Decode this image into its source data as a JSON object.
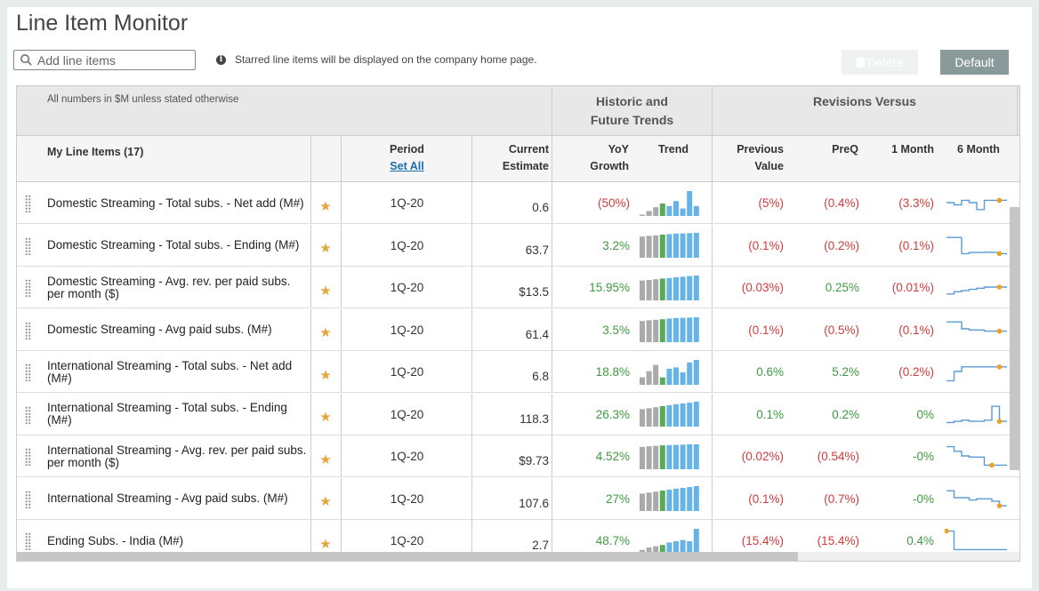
{
  "title": "Line Item Monitor",
  "search": {
    "placeholder": "Add line items"
  },
  "info_text": "Starred line items will be displayed on the company home page.",
  "buttons": {
    "delete": "Delete",
    "default": "Default"
  },
  "header": {
    "note": "All numbers in $M unless stated otherwise",
    "group_trends_line1": "Historic and",
    "group_trends_line2": "Future Trends",
    "group_revisions": "Revisions Versus",
    "my_line_items": "My Line Items (17)",
    "period": "Period",
    "set_all": "Set All",
    "current_line1": "Current",
    "current_line2": "Estimate",
    "yoy_line1": "YoY",
    "yoy_line2": "Growth",
    "trend": "Trend",
    "prev_line1": "Previous",
    "prev_line2": "Value",
    "preq": "PreQ",
    "one_month": "1 Month",
    "six_month": "6 Month"
  },
  "colors": {
    "negative": "#d23b3b",
    "positive": "#3f9a3f",
    "bar_hist": "#aaaaaa",
    "bar_current": "#5aaa5a",
    "bar_future": "#66b3e8",
    "spark": "#5b9bd5",
    "spark_dot": "#f0a020"
  },
  "rows": [
    {
      "name": "Domestic Streaming - Total subs. - Net add (M#)",
      "period": "1Q-20",
      "current": "0.6",
      "yoy": "(50%)",
      "yoy_sign": "neg",
      "prev": "(5%)",
      "prev_sign": "neg",
      "preq": "(0.4%)",
      "preq_sign": "neg",
      "m1": "(3.3%)",
      "m1_sign": "neg",
      "bars": [
        0.05,
        0.2,
        0.35,
        0.5,
        0.4,
        0.6,
        0.3,
        1.0,
        0.4
      ],
      "spark": [
        0.5,
        0.6,
        0.4,
        0.5,
        0.8,
        0.4,
        0.4,
        0.4,
        0.35
      ],
      "dot": 7
    },
    {
      "name": "Domestic Streaming - Total subs. - Ending (M#)",
      "period": "1Q-20",
      "current": "63.7",
      "yoy": "3.2%",
      "yoy_sign": "pos",
      "prev": "(0.1%)",
      "prev_sign": "neg",
      "preq": "(0.2%)",
      "preq_sign": "neg",
      "m1": "(0.1%)",
      "m1_sign": "neg",
      "bars": [
        0.85,
        0.88,
        0.9,
        0.93,
        0.95,
        0.97,
        0.98,
        0.99,
        1.0
      ],
      "spark": [
        0.2,
        0.2,
        0.9,
        0.85,
        0.85,
        0.84,
        0.85,
        0.9,
        0.95
      ],
      "dot": 7
    },
    {
      "name": "Domestic Streaming - Avg. rev. per paid subs. per month ($)",
      "period": "1Q-20",
      "current": "$13.5",
      "yoy": "15.95%",
      "yoy_sign": "pos",
      "prev": "(0.03%)",
      "prev_sign": "neg",
      "preq": "0.25%",
      "preq_sign": "pos",
      "m1": "(0.01%)",
      "m1_sign": "neg",
      "bars": [
        0.8,
        0.82,
        0.85,
        0.88,
        0.9,
        0.93,
        0.95,
        0.98,
        1.0
      ],
      "spark": [
        0.8,
        0.7,
        0.65,
        0.6,
        0.55,
        0.5,
        0.5,
        0.5,
        0.5
      ],
      "dot": 7
    },
    {
      "name": "Domestic Streaming - Avg paid subs. (M#)",
      "period": "1Q-20",
      "current": "61.4",
      "yoy": "3.5%",
      "yoy_sign": "pos",
      "prev": "(0.1%)",
      "prev_sign": "neg",
      "preq": "(0.5%)",
      "preq_sign": "neg",
      "m1": "(0.1%)",
      "m1_sign": "neg",
      "bars": [
        0.85,
        0.88,
        0.9,
        0.92,
        0.95,
        0.97,
        0.98,
        0.99,
        1.0
      ],
      "spark": [
        0.2,
        0.2,
        0.5,
        0.55,
        0.55,
        0.6,
        0.6,
        0.6,
        0.6
      ],
      "dot": 7
    },
    {
      "name": "International Streaming - Total subs. - Net add (M#)",
      "period": "1Q-20",
      "current": "6.8",
      "yoy": "18.8%",
      "yoy_sign": "pos",
      "prev": "0.6%",
      "prev_sign": "pos",
      "preq": "5.2%",
      "preq_sign": "pos",
      "m1": "(0.2%)",
      "m1_sign": "neg",
      "bars": [
        0.3,
        0.55,
        0.8,
        0.3,
        0.65,
        0.7,
        0.5,
        0.9,
        1.0
      ],
      "spark": [
        0.9,
        0.5,
        0.3,
        0.3,
        0.3,
        0.3,
        0.3,
        0.3,
        0.3
      ],
      "dot": 7
    },
    {
      "name": "International Streaming - Total subs. - Ending (M#)",
      "period": "1Q-20",
      "current": "118.3",
      "yoy": "26.3%",
      "yoy_sign": "pos",
      "prev": "0.1%",
      "prev_sign": "pos",
      "preq": "0.2%",
      "preq_sign": "pos",
      "m1": "0%",
      "m1_sign": "pos",
      "bars": [
        0.7,
        0.74,
        0.78,
        0.82,
        0.86,
        0.9,
        0.93,
        0.96,
        1.0
      ],
      "spark": [
        0.9,
        0.85,
        0.8,
        0.85,
        0.85,
        0.8,
        0.2,
        0.85,
        0.85
      ],
      "dot": 7
    },
    {
      "name": "International Streaming - Avg. rev. per paid subs. per month ($)",
      "period": "1Q-20",
      "current": "$9.73",
      "yoy": "4.52%",
      "yoy_sign": "pos",
      "prev": "(0.02%)",
      "prev_sign": "neg",
      "preq": "(0.54%)",
      "preq_sign": "neg",
      "m1": "-0%",
      "m1_sign": "pos",
      "bars": [
        0.9,
        0.92,
        0.94,
        0.96,
        0.97,
        0.98,
        0.99,
        1.0,
        1.0
      ],
      "spark": [
        0.1,
        0.3,
        0.5,
        0.55,
        0.55,
        0.9,
        0.9,
        0.9,
        0.9
      ],
      "dot": 6
    },
    {
      "name": "International Streaming - Avg paid subs. (M#)",
      "period": "1Q-20",
      "current": "107.6",
      "yoy": "27%",
      "yoy_sign": "pos",
      "prev": "(0.1%)",
      "prev_sign": "neg",
      "preq": "(0.7%)",
      "preq_sign": "neg",
      "m1": "-0%",
      "m1_sign": "pos",
      "bars": [
        0.7,
        0.74,
        0.78,
        0.82,
        0.86,
        0.9,
        0.93,
        0.96,
        1.0
      ],
      "spark": [
        0.2,
        0.5,
        0.5,
        0.6,
        0.55,
        0.55,
        0.65,
        0.85,
        0.85
      ],
      "dot": 7
    },
    {
      "name": "Ending Subs. - India (M#)",
      "period": "1Q-20",
      "current": "2.7",
      "yoy": "48.7%",
      "yoy_sign": "pos",
      "prev": "(15.4%)",
      "prev_sign": "neg",
      "preq": "(15.4%)",
      "preq_sign": "neg",
      "m1": "0.4%",
      "m1_sign": "pos",
      "bars": [
        0.15,
        0.25,
        0.3,
        0.35,
        0.45,
        0.5,
        0.55,
        0.5,
        1.0
      ],
      "spark": [
        0.1,
        0.9,
        0.9,
        0.9,
        0.9,
        0.9,
        0.9,
        0.9,
        0.9
      ],
      "dot": 0
    }
  ]
}
